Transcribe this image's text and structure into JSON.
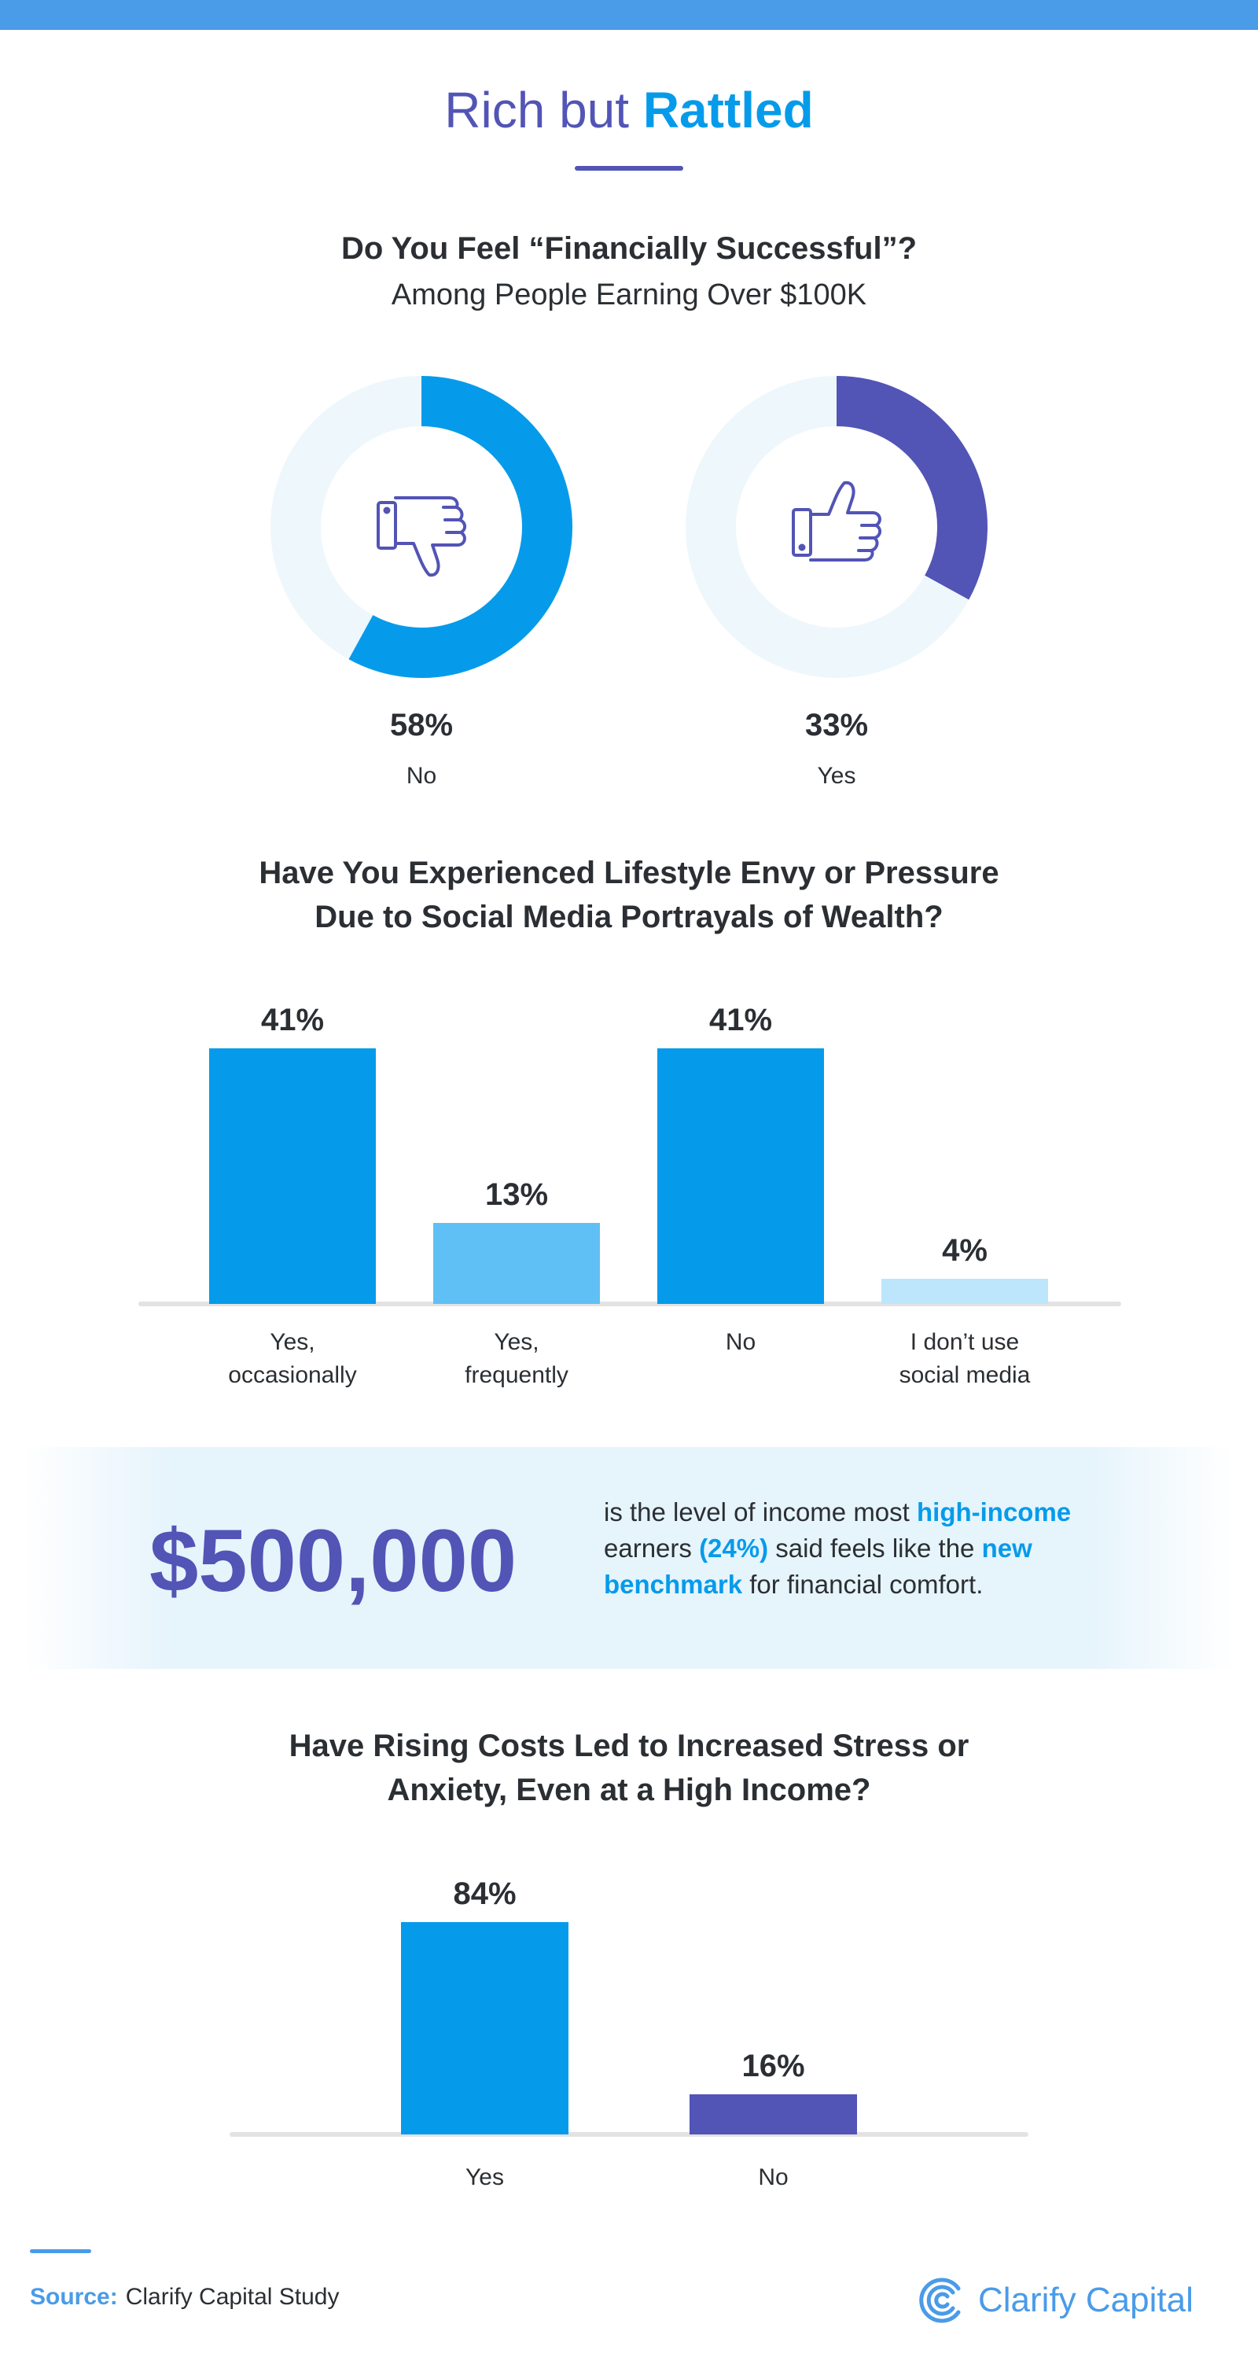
{
  "header": {
    "title_part1": "Rich but",
    "title_part2": "Rattled"
  },
  "section1": {
    "question": "Do You Feel “Financially Successful”?",
    "subtitle": "Among People Earning Over $100K"
  },
  "section2": {
    "question_line1": "Have You Experienced Lifestyle Envy or Pressure",
    "question_line2": "Due to Social Media Portrayals of Wealth?"
  },
  "callout": {
    "amount": "$500,000",
    "t1": "is the level of income most ",
    "h1": "high-income",
    "t2": " earners ",
    "h2": "(24%)",
    "t3": " said feels like the ",
    "h3": "new benchmark",
    "t4": " for financial comfort."
  },
  "section3": {
    "question_line1": "Have Rising Costs Led to Increased Stress or",
    "question_line2": "Anxiety, Even at a High Income?"
  },
  "footer": {
    "source_label": "Source:",
    "source_text": "Clarify Capital Study",
    "brand": "Clarify Capital"
  },
  "colors": {
    "blue": "#069bea",
    "purple": "#5254b6",
    "light_blue": "#5fc0f5",
    "pale_blue": "#bde5fb",
    "ring_bg": "#eef7fc"
  },
  "chart_data": [
    {
      "type": "pie",
      "title": "Do You Feel “Financially Successful”?",
      "subtitle": "Among People Earning Over $100K",
      "donuts": [
        {
          "label": "No",
          "value": 58,
          "display": "58%",
          "icon": "thumbs-down-icon",
          "color": "#069bea"
        },
        {
          "label": "Yes",
          "value": 33,
          "display": "33%",
          "icon": "thumbs-up-icon",
          "color": "#5254b6"
        }
      ]
    },
    {
      "type": "bar",
      "title": "Have You Experienced Lifestyle Envy or Pressure Due to Social Media Portrayals of Wealth?",
      "categories": [
        [
          "Yes,",
          "occasionally"
        ],
        [
          "Yes,",
          "frequently"
        ],
        [
          "No"
        ],
        [
          "I don’t use",
          "social media"
        ]
      ],
      "values": [
        41,
        13,
        41,
        4
      ],
      "labels": [
        "41%",
        "13%",
        "41%",
        "4%"
      ],
      "colors": [
        "#069bea",
        "#5fc0f5",
        "#069bea",
        "#bde5fb"
      ],
      "ylim": [
        0,
        41
      ]
    },
    {
      "type": "bar",
      "title": "Have Rising Costs Led to Increased Stress or Anxiety, Even at a High Income?",
      "categories": [
        [
          "Yes"
        ],
        [
          "No"
        ]
      ],
      "values": [
        84,
        16
      ],
      "labels": [
        "84%",
        "16%"
      ],
      "colors": [
        "#069bea",
        "#5254b6"
      ],
      "ylim": [
        0,
        84
      ]
    }
  ]
}
